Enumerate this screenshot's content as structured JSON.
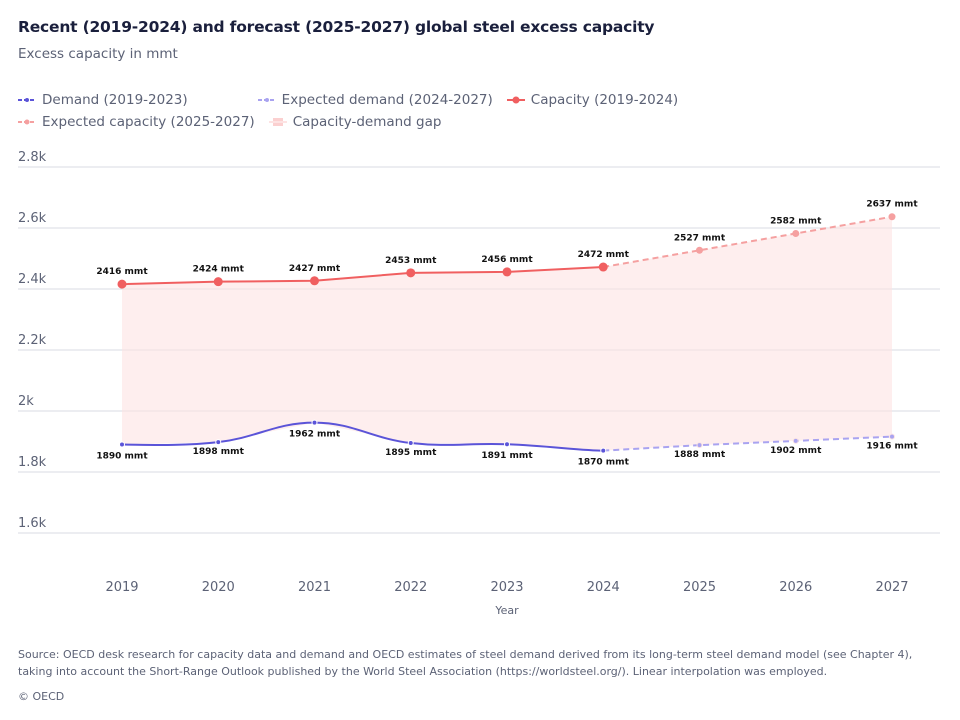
{
  "header": {
    "title": "Recent (2019-2024) and forecast (2025-2027) global steel excess capacity",
    "subtitle": "Excess capacity in mmt"
  },
  "legend": [
    {
      "label": "Demand (2019-2023)",
      "icon": "dashed-dot-line-icon",
      "color": "#5b54d8"
    },
    {
      "label": "Expected demand (2024-2027)",
      "icon": "dashed-dot-line-icon",
      "color": "#a9a3f0"
    },
    {
      "label": "Capacity (2019-2024)",
      "icon": "solid-dot-line-icon",
      "color": "#f05f60"
    },
    {
      "label": "Expected capacity (2025-2027)",
      "icon": "dashed-dot-line-icon",
      "color": "#f5a0a0"
    },
    {
      "label": "Capacity-demand gap",
      "icon": "area-square-icon",
      "color": "#fde3e3"
    }
  ],
  "chart_data": {
    "type": "line",
    "title": "Recent (2019-2024) and forecast (2025-2027) global steel excess capacity",
    "subtitle": "Excess capacity in mmt",
    "xlabel": "Year",
    "ylabel": "",
    "categories": [
      "2019",
      "2020",
      "2021",
      "2022",
      "2023",
      "2024",
      "2025",
      "2026",
      "2027"
    ],
    "ylim": [
      1500,
      2800
    ],
    "yticks": [
      1600,
      1800,
      2000,
      2200,
      2400,
      2600,
      2800
    ],
    "ytick_labels": [
      "1.6k",
      "1.8k",
      "2k",
      "2.2k",
      "2.4k",
      "2.6k",
      "2.8k"
    ],
    "grid": true,
    "legend_position": "top-left",
    "series": [
      {
        "name": "Demand (2019-2023)",
        "style": "solid-smooth",
        "color": "#5b54d8",
        "x": [
          "2019",
          "2020",
          "2021",
          "2022",
          "2023",
          "2024"
        ],
        "values": [
          1890,
          1898,
          1962,
          1895,
          1891,
          1870
        ]
      },
      {
        "name": "Expected demand (2024-2027)",
        "style": "dashed",
        "color": "#a9a3f0",
        "x": [
          "2024",
          "2025",
          "2026",
          "2027"
        ],
        "values": [
          1870,
          1888,
          1902,
          1916
        ]
      },
      {
        "name": "Capacity (2019-2024)",
        "style": "solid",
        "color": "#f05f60",
        "x": [
          "2019",
          "2020",
          "2021",
          "2022",
          "2023",
          "2024"
        ],
        "values": [
          2416,
          2424,
          2427,
          2453,
          2456,
          2472
        ]
      },
      {
        "name": "Expected capacity (2025-2027)",
        "style": "dashed",
        "color": "#f5a0a0",
        "x": [
          "2024",
          "2025",
          "2026",
          "2027"
        ],
        "values": [
          2472,
          2527,
          2582,
          2637
        ]
      }
    ],
    "gap_area": {
      "name": "Capacity-demand gap",
      "color": "#fde3e3"
    },
    "data_labels": {
      "capacity": [
        "2416 mmt",
        "2424 mmt",
        "2427 mmt",
        "2453 mmt",
        "2456 mmt",
        "2472 mmt",
        "2527 mmt",
        "2582 mmt",
        "2637 mmt"
      ],
      "demand": [
        "1890 mmt",
        "1898 mmt",
        "1962 mmt",
        "1895 mmt",
        "1891 mmt",
        "1870 mmt",
        "1888 mmt",
        "1902 mmt",
        "1916 mmt"
      ]
    }
  },
  "footer": {
    "source": "Source: OECD desk research for capacity data and demand and OECD estimates of steel demand derived from its long-term steel demand model (see Chapter 4), taking into account the Short-Range Outlook published by the World Steel Association (https://worldsteel.org/). Linear interpolation was employed.",
    "copyright": "© OECD"
  }
}
